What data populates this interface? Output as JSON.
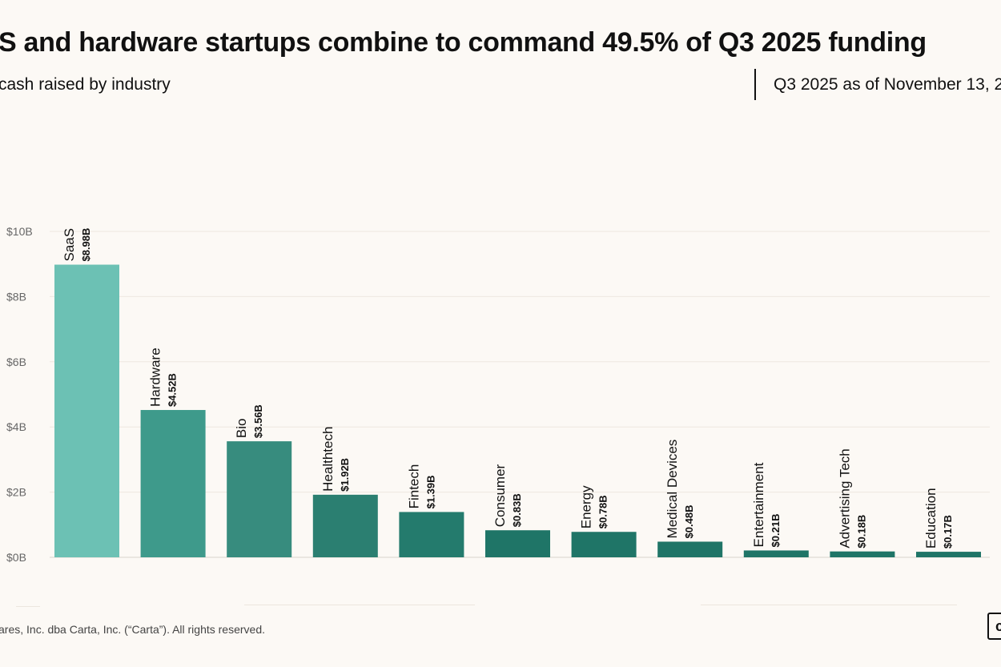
{
  "header": {
    "title": "S and hardware startups combine to command 49.5% of Q3 2025 funding",
    "subtitle": "cash raised by industry",
    "date_note": "Q3 2025 as of November 13, 2"
  },
  "footer": {
    "copyright": "ares, Inc. dba Carta, Inc. (“Carta”). All rights reserved.",
    "logo_text": "c"
  },
  "chart_data": {
    "type": "bar",
    "categories": [
      "SaaS",
      "Hardware",
      "Bio",
      "Healthtech",
      "Fintech",
      "Consumer",
      "Energy",
      "Medical Devices",
      "Entertainment",
      "Advertising Tech",
      "Education"
    ],
    "values": [
      8.98,
      4.52,
      3.56,
      1.92,
      1.39,
      0.83,
      0.78,
      0.48,
      0.21,
      0.18,
      0.17
    ],
    "value_labels": [
      "$8.98B",
      "$4.52B",
      "$3.56B",
      "$1.92B",
      "$1.39B",
      "$0.83B",
      "$0.78B",
      "$0.48B",
      "$0.21B",
      "$0.18B",
      "$0.17B"
    ],
    "colors": [
      "#6cc1b4",
      "#3e9a8b",
      "#378c7e",
      "#2b7f71",
      "#247b6d",
      "#1f7567",
      "#1f7567",
      "#1f7567",
      "#1f7567",
      "#1f7567",
      "#1f7567"
    ],
    "ylim": [
      0,
      10
    ],
    "yticks": [
      0,
      2,
      4,
      6,
      8,
      10
    ],
    "ytick_labels": [
      "$0B",
      "$2B",
      "$4B",
      "$6B",
      "$8B",
      "$10B"
    ],
    "grid": true,
    "xlabel": "",
    "ylabel": ""
  }
}
